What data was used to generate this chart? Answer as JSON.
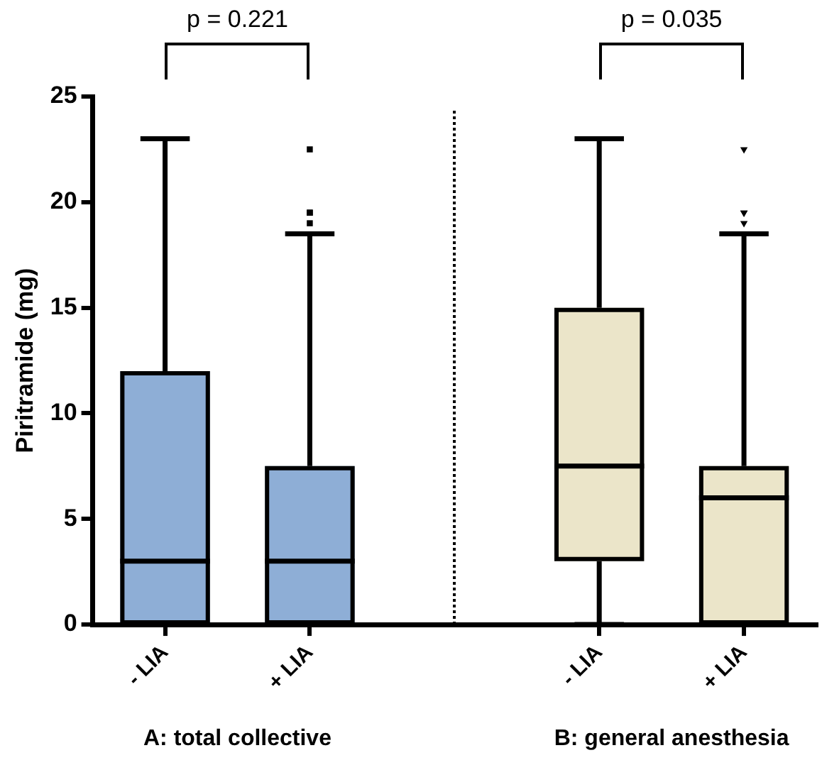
{
  "chart_data": {
    "type": "box",
    "ylabel": "Piritramide (mg)",
    "categories": [
      "- LIA",
      "+ LIA",
      "- LIA",
      "+ LIA"
    ],
    "ylim": [
      0,
      25
    ],
    "yticks": [
      0,
      5,
      10,
      15,
      20,
      25
    ],
    "series": [
      {
        "color": "#8eaed6",
        "marker": "square",
        "boxes": [
          {
            "low": 0,
            "q1": 0,
            "median": 3,
            "q3": 12,
            "high": 23
          },
          {
            "low": 0,
            "q1": 0,
            "median": 3,
            "q3": 7.5,
            "high": 18.5,
            "outliers": [
              22.5,
              19.5,
              19.5,
              19
            ]
          },
          null,
          null
        ]
      },
      {
        "color": "#ebe5c9",
        "marker": "triangle",
        "boxes": [
          null,
          null,
          {
            "low": 0,
            "q1": 3,
            "median": 7.5,
            "q3": 15,
            "high": 23
          },
          {
            "low": 0,
            "q1": 0,
            "median": 6,
            "q3": 7.5,
            "high": 18.5,
            "outliers": [
              22.5,
              19.5,
              19.5,
              19
            ]
          }
        ]
      }
    ],
    "annotations": [
      "p = 0.221",
      "p = 0.035",
      "A: total collective",
      "B: general anesthesia"
    ]
  }
}
